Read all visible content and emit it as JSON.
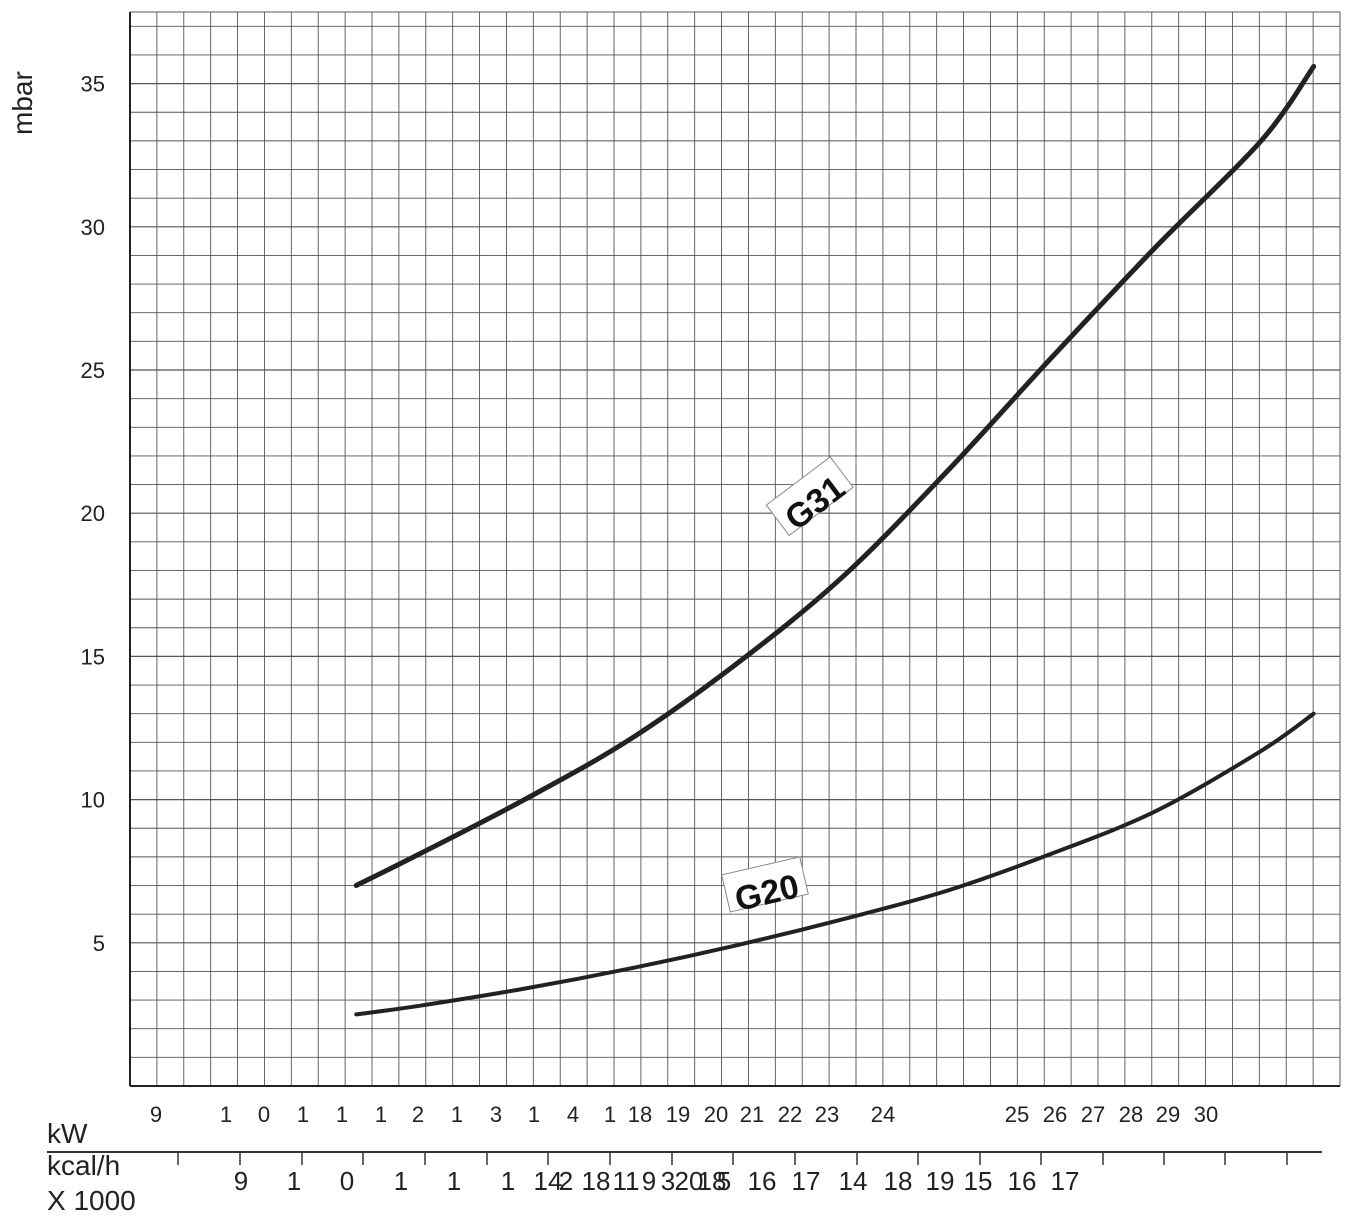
{
  "chart_data": {
    "type": "line",
    "title": "",
    "ylabel": "mbar",
    "ylim": [
      0,
      37.5
    ],
    "xlim": [
      8.5,
      31.5
    ],
    "yticks": [
      5,
      10,
      15,
      20,
      25,
      30,
      35
    ],
    "grid": true,
    "xaxis_label_kw": "kW",
    "xaxis_label_kcal": "kcal/h",
    "xaxis_label_kcal_sub": "X 1000",
    "kw_tick_labels": [
      "9",
      "1",
      "0",
      "1",
      "1",
      "1",
      "2",
      "1",
      "3",
      "1",
      "4",
      "1",
      "18",
      "19",
      "20",
      "21",
      "22",
      "23",
      "24",
      "25",
      "26",
      "27",
      "28",
      "29",
      "30"
    ],
    "kcal_tick_labels": [
      "9",
      "1",
      "0",
      "1",
      "1",
      "1",
      "14",
      "2",
      "18",
      "11",
      "9",
      "3",
      "20",
      "18",
      "5",
      "16",
      "17",
      "14",
      "18",
      "19",
      "15",
      "16",
      "17"
    ],
    "series": [
      {
        "name": "G31",
        "color": "#222222",
        "x": [
          12.8,
          14,
          16,
          18,
          20,
          22,
          24,
          26,
          28,
          30,
          31
        ],
        "y": [
          7.0,
          8.1,
          10.0,
          12.1,
          14.7,
          17.7,
          21.4,
          25.4,
          29.3,
          33.0,
          35.6
        ]
      },
      {
        "name": "G20",
        "color": "#222222",
        "x": [
          12.8,
          14,
          16,
          18,
          20,
          22,
          24,
          26,
          28,
          30,
          31
        ],
        "y": [
          2.5,
          2.8,
          3.4,
          4.1,
          4.9,
          5.8,
          6.8,
          8.1,
          9.6,
          11.7,
          13.0
        ]
      }
    ]
  }
}
